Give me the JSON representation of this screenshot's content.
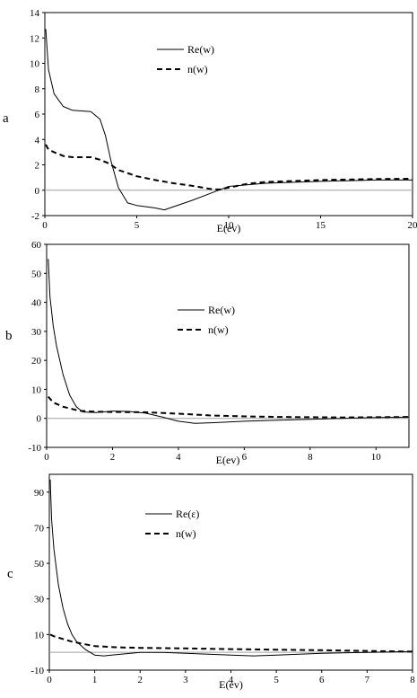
{
  "chart_data": [
    {
      "id": "a",
      "type": "line",
      "panel_label": "a",
      "xlabel": "E(ev)",
      "ylabel": "",
      "xlim": [
        0,
        20
      ],
      "ylim": [
        -2,
        14
      ],
      "x_ticks": [
        0,
        5,
        10,
        15,
        20
      ],
      "y_ticks": [
        -2,
        0,
        2,
        4,
        6,
        8,
        10,
        12,
        14
      ],
      "legend_placement": "top-center",
      "series": [
        {
          "name": "Re(w)",
          "style": "solid",
          "x": [
            0.05,
            0.2,
            0.5,
            1,
            1.5,
            2,
            2.5,
            3,
            3.3,
            3.6,
            4,
            4.5,
            5,
            5.5,
            6,
            6.5,
            7,
            8,
            9,
            10,
            12,
            15,
            18,
            20
          ],
          "y": [
            12.7,
            9.5,
            7.6,
            6.6,
            6.3,
            6.25,
            6.2,
            5.6,
            4.3,
            2.3,
            0.2,
            -1.0,
            -1.2,
            -1.3,
            -1.4,
            -1.55,
            -1.3,
            -0.8,
            -0.25,
            0.3,
            0.55,
            0.7,
            0.8,
            0.8
          ]
        },
        {
          "name": "n(w)",
          "style": "dashed",
          "x": [
            0.05,
            0.2,
            0.5,
            1,
            1.5,
            2,
            2.5,
            3,
            3.5,
            4,
            5,
            6,
            7,
            8,
            9,
            9.5,
            10,
            11,
            12,
            15,
            18,
            20
          ],
          "y": [
            3.6,
            3.2,
            3.0,
            2.7,
            2.6,
            2.6,
            2.6,
            2.4,
            2.1,
            1.6,
            1.1,
            0.8,
            0.55,
            0.35,
            0.1,
            0.05,
            0.2,
            0.5,
            0.65,
            0.8,
            0.88,
            0.9
          ]
        }
      ]
    },
    {
      "id": "b",
      "type": "line",
      "panel_label": "b",
      "xlabel": "E(ev)",
      "ylabel": "",
      "xlim": [
        0,
        11
      ],
      "ylim": [
        -10,
        60
      ],
      "x_ticks": [
        0,
        2,
        4,
        6,
        8,
        10
      ],
      "y_ticks": [
        -10,
        0,
        10,
        20,
        30,
        40,
        50,
        60
      ],
      "legend_placement": "center",
      "series": [
        {
          "name": "Re(w)",
          "style": "solid",
          "x": [
            0.05,
            0.1,
            0.2,
            0.3,
            0.5,
            0.7,
            0.9,
            1.1,
            1.5,
            2,
            2.5,
            3,
            3.5,
            4,
            4.5,
            5,
            6,
            7,
            8,
            9,
            10,
            11
          ],
          "y": [
            55,
            42,
            32,
            25,
            15,
            8,
            4,
            2.2,
            2.0,
            2.5,
            2.4,
            1.8,
            0.5,
            -1.0,
            -1.7,
            -1.5,
            -1.0,
            -0.6,
            -0.3,
            0.0,
            0.3,
            0.4
          ]
        },
        {
          "name": "n(w)",
          "style": "dashed",
          "x": [
            0.05,
            0.2,
            0.5,
            1,
            1.5,
            2,
            3,
            4,
            5,
            6,
            7,
            8,
            9,
            10,
            11
          ],
          "y": [
            7.5,
            5.5,
            4.0,
            2.6,
            2.3,
            2.2,
            2.1,
            1.6,
            1.0,
            0.7,
            0.5,
            0.4,
            0.3,
            0.4,
            0.5
          ]
        }
      ]
    },
    {
      "id": "c",
      "type": "line",
      "panel_label": "c",
      "xlabel": "E(ev)",
      "ylabel": "",
      "xlim": [
        0,
        8
      ],
      "ylim": [
        -10,
        100
      ],
      "x_ticks": [
        0,
        1,
        2,
        3,
        4,
        5,
        6,
        7,
        8
      ],
      "y_ticks": [
        -10,
        10,
        30,
        50,
        70,
        90
      ],
      "legend_placement": "top-center",
      "series": [
        {
          "name": "Re(ε)",
          "style": "solid",
          "x": [
            0.02,
            0.05,
            0.1,
            0.2,
            0.3,
            0.4,
            0.5,
            0.6,
            0.8,
            1.0,
            1.2,
            1.5,
            2,
            2.5,
            3,
            3.5,
            4,
            4.5,
            5,
            6,
            7,
            8
          ],
          "y": [
            97,
            75,
            58,
            38,
            25,
            16,
            10,
            6,
            1.5,
            -1.5,
            -2.0,
            -1.2,
            0,
            0,
            -0.5,
            -1.0,
            -1.5,
            -2.0,
            -1.5,
            -0.5,
            0,
            0.5
          ]
        },
        {
          "name": "n(w)",
          "style": "dashed",
          "x": [
            0.02,
            0.1,
            0.3,
            0.5,
            0.8,
            1,
            1.5,
            2,
            3,
            4,
            5,
            6,
            7,
            8
          ],
          "y": [
            10,
            9,
            7.5,
            6,
            4.5,
            3.5,
            2.8,
            2.5,
            2.2,
            1.8,
            1.5,
            1.2,
            0.8,
            0.4
          ]
        }
      ]
    }
  ]
}
